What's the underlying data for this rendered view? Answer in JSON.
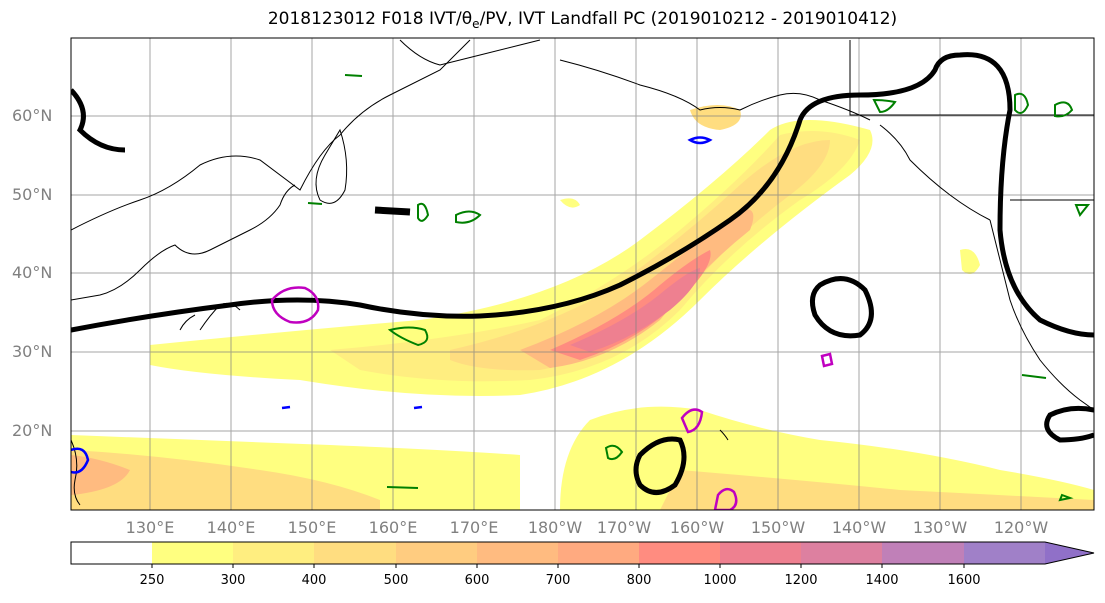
{
  "title": {
    "prefix": "2018123012 F018 IVT/",
    "theta": "θ",
    "theta_sub": "e",
    "suffix": "/PV, IVT Landfall PC (2019010212 - 2019010412)"
  },
  "map": {
    "lat_labels": [
      "60°N",
      "50°N",
      "40°N",
      "30°N",
      "20°N"
    ],
    "lon_labels": [
      "130°E",
      "140°E",
      "150°E",
      "160°E",
      "170°E",
      "180°W",
      "170°W",
      "160°W",
      "150°W",
      "140°W",
      "130°W",
      "120°W"
    ],
    "colors": {
      "theta_e_contour": "#000000",
      "pv_contour": "#008000",
      "negative_contour": "#c000c0",
      "blue_contour": "#0000ff",
      "coastline": "#000000",
      "gridline": "#808080"
    }
  },
  "colorbar": {
    "ticks": [
      "250",
      "300",
      "400",
      "500",
      "600",
      "700",
      "800",
      "1000",
      "1200",
      "1400",
      "1600"
    ],
    "colors": [
      "#ffffff",
      "#ffff80",
      "#ffee80",
      "#ffdd80",
      "#ffcc80",
      "#ffbb80",
      "#ffaa80",
      "#ff8c80",
      "#ee8090",
      "#dd80a0",
      "#c080b8",
      "#a080c8",
      "#9070c8"
    ]
  }
}
